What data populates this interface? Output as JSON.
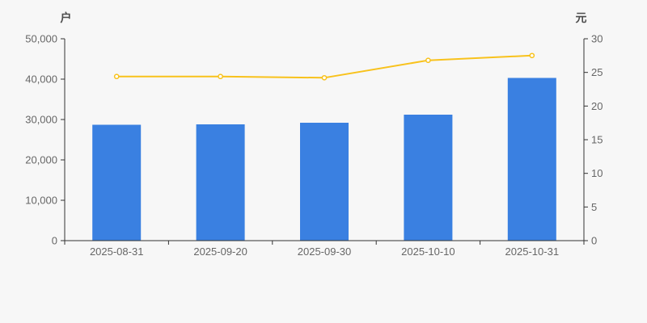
{
  "page": {
    "background_color": "#f7f7f7"
  },
  "colors": {
    "bar": "#3a80e1",
    "line": "#f8c21c",
    "marker_fill": "#ffffff",
    "axis_line": "#333333",
    "tick_text": "#666666",
    "axis_name_text": "#4d4d4d"
  },
  "chart_data": {
    "type": "bar",
    "subtype": "bar-line-dual-axis",
    "title": "",
    "legend": false,
    "grid": false,
    "categories": [
      "2025-08-31",
      "2025-09-20",
      "2025-09-30",
      "2025-10-10",
      "2025-10-31"
    ],
    "series": [
      {
        "name": "户",
        "type": "bar",
        "axis": "left",
        "values": [
          28700,
          28800,
          29200,
          31200,
          40300
        ],
        "color": "#3a80e1"
      },
      {
        "name": "元",
        "type": "line",
        "axis": "right",
        "values": [
          24.4,
          24.4,
          24.2,
          26.8,
          27.5
        ],
        "color": "#f8c21c"
      }
    ],
    "left_axis": {
      "unit": "户",
      "min": 0,
      "max": 50000,
      "tick_values": [
        0,
        10000,
        20000,
        30000,
        40000,
        50000
      ],
      "tick_labels": [
        "0",
        "10,000",
        "20,000",
        "30,000",
        "40,000",
        "50,000"
      ]
    },
    "right_axis": {
      "unit": "元",
      "min": 0,
      "max": 30,
      "tick_values": [
        0,
        5,
        10,
        15,
        20,
        25,
        30
      ],
      "tick_labels": [
        "0",
        "5",
        "10",
        "15",
        "20",
        "25",
        "30"
      ]
    },
    "x_axis": {
      "tick_labels": [
        "2025-08-31",
        "2025-09-20",
        "2025-09-30",
        "2025-10-10",
        "2025-10-31"
      ]
    }
  }
}
